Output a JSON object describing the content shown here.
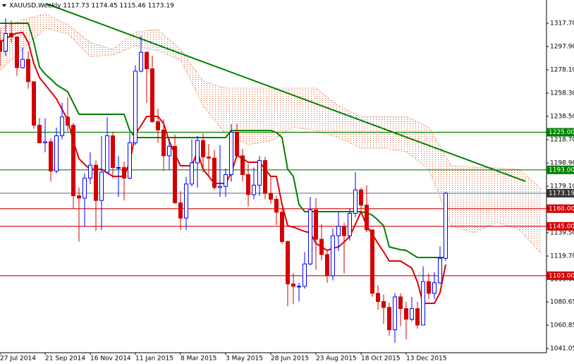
{
  "chart_data": {
    "type": "candlestick",
    "title": "XAUUSD,Weekly  1117.73 1174.45 1115.46 1173.19",
    "categories": [
      "27 Jul 2014",
      null,
      null,
      null,
      null,
      null,
      null,
      null,
      "21 Sep 2014",
      null,
      null,
      null,
      null,
      null,
      null,
      null,
      "16 Nov 2014",
      null,
      null,
      null,
      null,
      null,
      null,
      null,
      "11 Jan 2015",
      null,
      null,
      null,
      null,
      null,
      null,
      null,
      "8 Mar 2015",
      null,
      null,
      null,
      null,
      null,
      null,
      null,
      "3 May 2015",
      null,
      null,
      null,
      null,
      null,
      null,
      null,
      "28 Jun 2015",
      null,
      null,
      null,
      null,
      null,
      null,
      null,
      "23 Aug 2015",
      null,
      null,
      null,
      null,
      null,
      null,
      null,
      "18 Oct 2015",
      null,
      null,
      null,
      null,
      null,
      null,
      null,
      "13 Dec 2015",
      null,
      null,
      null,
      null,
      null,
      null,
      null
    ],
    "open": [
      1303,
      1294,
      1309,
      1306,
      1280,
      1287,
      1268,
      1231,
      1216,
      1217,
      1192,
      1222,
      1238,
      1231,
      1171,
      1169,
      1186,
      1197,
      1167,
      1191,
      1222,
      1195,
      1195,
      1186,
      1216,
      1277,
      1293,
      1279,
      1234,
      1227,
      1205,
      1213,
      1165,
      1152,
      1181,
      1199,
      1218,
      1204,
      1203,
      1178,
      1179,
      1189,
      1225,
      1205,
      1189,
      1172,
      1180,
      1201,
      1173,
      1168,
      1157,
      1132,
      1096,
      1094,
      1094,
      1113,
      1159,
      1134,
      1121,
      1103,
      1137,
      1145,
      1137,
      1156,
      1176,
      1163,
      1142,
      1088,
      1081,
      1076,
      1057,
      1085,
      1075,
      1066,
      1075,
      1061,
      1098,
      1088,
      1097,
      1117.73
    ],
    "high": [
      1312,
      1322,
      1320,
      1307,
      1297,
      1294,
      1268,
      1237,
      1237,
      1220,
      1229,
      1250,
      1255,
      1233,
      1178,
      1190,
      1208,
      1201,
      1222,
      1238,
      1225,
      1205,
      1200,
      1224,
      1282,
      1307,
      1294,
      1290,
      1245,
      1236,
      1219,
      1223,
      1175,
      1187,
      1219,
      1222,
      1224,
      1215,
      1210,
      1214,
      1194,
      1232,
      1232,
      1211,
      1198,
      1195,
      1205,
      1204,
      1187,
      1171,
      1160,
      1133,
      1105,
      1097,
      1123,
      1170,
      1169,
      1147,
      1125,
      1143,
      1157,
      1148,
      1160,
      1191,
      1178,
      1180,
      1142,
      1095,
      1087,
      1080,
      1088,
      1088,
      1081,
      1085,
      1081,
      1111,
      1105,
      1106,
      1128,
      1174.45
    ],
    "low": [
      1281,
      1290,
      1301,
      1273,
      1279,
      1262,
      1228,
      1216,
      1208,
      1183,
      1190,
      1219,
      1226,
      1160,
      1132,
      1145,
      1181,
      1141,
      1142,
      1190,
      1186,
      1170,
      1167,
      1185,
      1214,
      1276,
      1250,
      1233,
      1216,
      1192,
      1193,
      1164,
      1142,
      1142,
      1179,
      1178,
      1191,
      1188,
      1176,
      1170,
      1170,
      1183,
      1203,
      1183,
      1162,
      1168,
      1171,
      1168,
      1164,
      1146,
      1130,
      1077,
      1079,
      1081,
      1092,
      1112,
      1108,
      1116,
      1097,
      1099,
      1124,
      1105,
      1133,
      1153,
      1159,
      1140,
      1085,
      1074,
      1062,
      1052,
      1046,
      1060,
      1049,
      1064,
      1058,
      1061,
      1083,
      1083,
      1096,
      1115.46
    ],
    "close": [
      1294,
      1309,
      1306,
      1280,
      1287,
      1268,
      1231,
      1216,
      1217,
      1192,
      1222,
      1238,
      1231,
      1171,
      1169,
      1186,
      1197,
      1167,
      1191,
      1222,
      1195,
      1195,
      1186,
      1216,
      1277,
      1293,
      1279,
      1234,
      1227,
      1205,
      1213,
      1165,
      1152,
      1181,
      1199,
      1218,
      1204,
      1203,
      1178,
      1179,
      1189,
      1225,
      1205,
      1189,
      1172,
      1180,
      1201,
      1173,
      1168,
      1157,
      1132,
      1096,
      1094,
      1094,
      1113,
      1159,
      1134,
      1121,
      1103,
      1137,
      1145,
      1137,
      1156,
      1176,
      1163,
      1142,
      1088,
      1081,
      1076,
      1057,
      1085,
      1075,
      1066,
      1075,
      1061,
      1098,
      1088,
      1097,
      1117.73,
      1173.19
    ],
    "up_color": "#0000ff",
    "down_color": "#d40000",
    "series": [
      {
        "color": "#e00000",
        "values": [
          1301.5,
          1304.5,
          1307.5,
          1309.3,
          1309.9,
          1301.5,
          1283.5,
          1271.5,
          1265.5,
          1259.5,
          1253.5,
          1244.5,
          1235.5,
          1217.5,
          1202.5,
          1197.7,
          1193.5,
          1193.5,
          1193.5,
          1190.5,
          1187.5,
          1187.5,
          1187.5,
          1199.5,
          1223.5,
          1230.7,
          1238.5,
          1238.5,
          1238.5,
          1232.5,
          1217.5,
          1206.7,
          1196.5,
          1196.5,
          1196.5,
          1208.5,
          1193.5,
          1187.5,
          1181.5,
          1181.5,
          1181.5,
          1190.5,
          1205.5,
          1202.5,
          1199.5,
          1199.5,
          1199.5,
          1193.5,
          1187.5,
          1187.5,
          1163.5,
          1145.5,
          1144.3,
          1142.5,
          1140.7,
          1139.5,
          1130.5,
          1127.5,
          1124.5,
          1126.3,
          1127.5,
          1131.7,
          1136.5,
          1146.7,
          1157.5,
          1145.5,
          1138.3,
          1130.5,
          1123.3,
          1115.5,
          1115.5,
          1115.5,
          1112.5,
          1109.5,
          1097.5,
          1079.5,
          1079.5,
          1079.5,
          1088.5,
          1112.5
        ]
      },
      {
        "color": "#008000",
        "values": [
          1317.7,
          1317.7,
          1317.7,
          1317.7,
          1317.7,
          1317.7,
          1301.5,
          1280.5,
          1274.5,
          1270.3,
          1265.5,
          1262.5,
          1259.5,
          1249.9,
          1240.3,
          1240.3,
          1240.3,
          1240.3,
          1240.3,
          1240.3,
          1240.3,
          1240.3,
          1240.3,
          1226.5,
          1220.5,
          1220.5,
          1220.5,
          1220.5,
          1220.5,
          1220.5,
          1220.5,
          1220.5,
          1220.5,
          1220.5,
          1220.5,
          1220.5,
          1220.5,
          1220.5,
          1220.5,
          1220.5,
          1220.5,
          1226.5,
          1226.5,
          1226.5,
          1226.5,
          1226.5,
          1226.5,
          1226.5,
          1226.5,
          1224.7,
          1220.5,
          1193.5,
          1187.5,
          1163.5,
          1157.5,
          1157.5,
          1157.5,
          1157.5,
          1157.5,
          1157.5,
          1157.5,
          1157.5,
          1157.5,
          1157.5,
          1157.5,
          1156.3,
          1154.5,
          1150.3,
          1145.5,
          1127.5,
          1126.3,
          1125.1,
          1124.5,
          1121.5,
          1118.5,
          1118.5,
          1118.5,
          1118.5,
          1118.5,
          1118.5
        ]
      }
    ],
    "cloud": {
      "color": "#e05a2a",
      "upper": [
        1313.5,
        1320.7,
        1325.5,
        1316.5,
        1301.5,
        1295.5,
        1310.5,
        1312.3,
        1295.5,
        1268.5,
        1262.5,
        1262.5,
        1262.5,
        1262.5,
        1262.5,
        1247.5,
        1238.5,
        1238.5,
        1238.5,
        1229.5,
        1196.5,
        1195.3,
        1194.7,
        1193.5,
        1176.7
      ],
      "lower": [
        1277.5,
        1295.5,
        1313.5,
        1308.7,
        1289.5,
        1290.7,
        1298.5,
        1294.3,
        1286.5,
        1247.5,
        1223.5,
        1214.5,
        1217.5,
        1229.5,
        1226.5,
        1220.5,
        1211.5,
        1211.5,
        1208.5,
        1193.5,
        1145.5,
        1139.5,
        1148.5,
        1142.5,
        1121.5
      ]
    },
    "trendline": {
      "color": "#008000",
      "values": [
        1334.5,
        1183.3
      ]
    },
    "levels": [
      {
        "value": 1225,
        "label": "1225.00",
        "color": "#008000"
      },
      {
        "value": 1193,
        "label": "1193.00",
        "color": "#008000"
      },
      {
        "value": 1173.19,
        "color": "#778899"
      },
      {
        "value": 1160,
        "label": "1160.00",
        "color": "#d40000"
      },
      {
        "value": 1145,
        "label": "1145.00",
        "color": "#d40000"
      },
      {
        "value": 1103,
        "label": "1103.00",
        "color": "#d40000"
      }
    ],
    "ylim": [
      1037.5,
      1337.5
    ],
    "yticks": [
      {
        "value": 1317.7,
        "label": "1317.70"
      },
      {
        "value": 1297.9,
        "label": "1297.90"
      },
      {
        "value": 1278.1,
        "label": "1278.10"
      },
      {
        "value": 1258.3,
        "label": "1258.30"
      },
      {
        "value": 1238.5,
        "label": "1238.50"
      },
      {
        "value": 1218.7,
        "label": "1218.70"
      },
      {
        "value": 1198.9,
        "label": "1198.90"
      },
      {
        "value": 1179.1,
        "label": "1179.10"
      },
      {
        "value": 1139.5,
        "label": "1139.50"
      },
      {
        "value": 1119.7,
        "label": "1119.70"
      },
      {
        "value": 1099.9,
        "label": "1099.90"
      },
      {
        "value": 1080.65,
        "label": "1080.65"
      },
      {
        "value": 1060.85,
        "label": "1060.85"
      },
      {
        "value": 1041.05,
        "label": "1041.05"
      }
    ]
  }
}
